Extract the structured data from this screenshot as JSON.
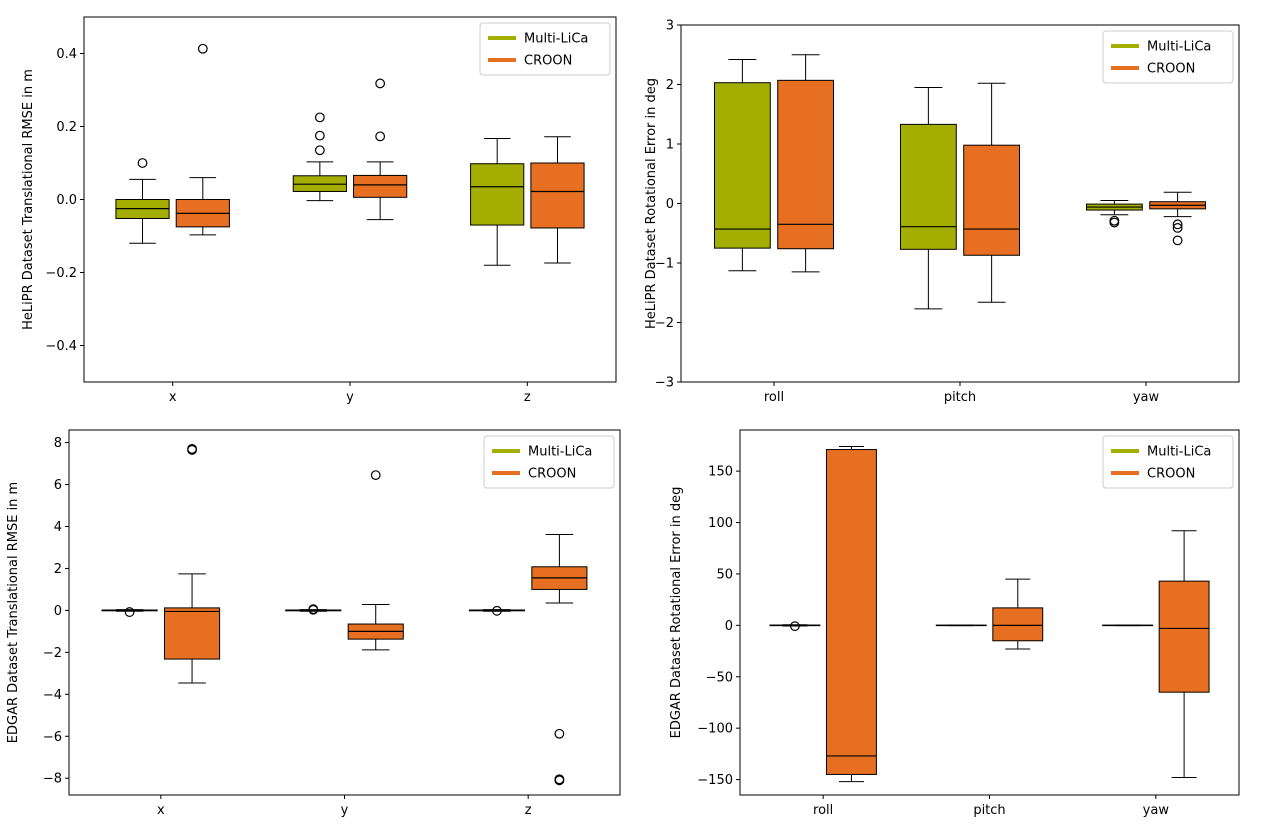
{
  "colors": {
    "multi": "#a3ae00",
    "croon": "#e66f22"
  },
  "chart_data": [
    {
      "type": "box",
      "ylabel": "HeLiPR Dataset Translational RMSE in m",
      "categories": [
        "x",
        "y",
        "z"
      ],
      "ylim": [
        -0.5,
        0.5
      ],
      "yticks": [
        -0.4,
        -0.2,
        0.0,
        0.2,
        0.4
      ],
      "ytick_labels": [
        "−0.4",
        "−0.2",
        "0.0",
        "0.2",
        "0.4"
      ],
      "legend": {
        "position": "upper right",
        "entries": [
          "Multi-LiCa",
          "CROON"
        ]
      },
      "series": [
        {
          "name": "Multi-LiCa",
          "boxes": [
            {
              "q1": -0.052,
              "median": -0.025,
              "q3": 0.0,
              "whislo": -0.12,
              "whishi": 0.055,
              "fliers": [
                0.1
              ]
            },
            {
              "q1": 0.022,
              "median": 0.042,
              "q3": 0.065,
              "whislo": -0.003,
              "whishi": 0.103,
              "fliers": [
                0.135,
                0.175,
                0.225
              ]
            },
            {
              "q1": -0.07,
              "median": 0.035,
              "q3": 0.098,
              "whislo": -0.18,
              "whishi": 0.167,
              "fliers": []
            }
          ]
        },
        {
          "name": "CROON",
          "boxes": [
            {
              "q1": -0.075,
              "median": -0.038,
              "q3": 0.0,
              "whislo": -0.097,
              "whishi": 0.06,
              "fliers": [
                0.413
              ]
            },
            {
              "q1": 0.006,
              "median": 0.04,
              "q3": 0.066,
              "whislo": -0.055,
              "whishi": 0.103,
              "fliers": [
                0.173,
                0.318
              ]
            },
            {
              "q1": -0.078,
              "median": 0.022,
              "q3": 0.1,
              "whislo": -0.174,
              "whishi": 0.172,
              "fliers": []
            }
          ]
        }
      ]
    },
    {
      "type": "box",
      "ylabel": "HeLiPR Dataset Rotational Error in deg",
      "categories": [
        "roll",
        "pitch",
        "yaw"
      ],
      "ylim": [
        -3,
        3
      ],
      "yticks": [
        -3,
        -2,
        -1,
        0,
        1,
        2,
        3
      ],
      "ytick_labels": [
        "−3",
        "−2",
        "−1",
        "0",
        "1",
        "2",
        "3"
      ],
      "legend": {
        "position": "upper right",
        "entries": [
          "Multi-LiCa",
          "CROON"
        ]
      },
      "series": [
        {
          "name": "Multi-LiCa",
          "boxes": [
            {
              "q1": -0.75,
              "median": -0.43,
              "q3": 2.03,
              "whislo": -1.13,
              "whishi": 2.42,
              "fliers": []
            },
            {
              "q1": -0.77,
              "median": -0.39,
              "q3": 1.33,
              "whislo": -1.77,
              "whishi": 1.95,
              "fliers": []
            },
            {
              "q1": -0.11,
              "median": -0.06,
              "q3": -0.01,
              "whislo": -0.19,
              "whishi": 0.05,
              "fliers": [
                -0.29,
                -0.32
              ]
            }
          ]
        },
        {
          "name": "CROON",
          "boxes": [
            {
              "q1": -0.76,
              "median": -0.35,
              "q3": 2.07,
              "whislo": -1.15,
              "whishi": 2.5,
              "fliers": []
            },
            {
              "q1": -0.87,
              "median": -0.43,
              "q3": 0.98,
              "whislo": -1.66,
              "whishi": 2.02,
              "fliers": []
            },
            {
              "q1": -0.09,
              "median": -0.03,
              "q3": 0.03,
              "whislo": -0.22,
              "whishi": 0.19,
              "fliers": [
                -0.35,
                -0.41,
                -0.62
              ]
            }
          ]
        }
      ]
    },
    {
      "type": "box",
      "ylabel": "EDGAR Dataset Translational RMSE in m",
      "categories": [
        "x",
        "y",
        "z"
      ],
      "ylim": [
        -8.8,
        8.6
      ],
      "yticks": [
        -8,
        -6,
        -4,
        -2,
        0,
        2,
        4,
        6,
        8
      ],
      "ytick_labels": [
        "−8",
        "−6",
        "−4",
        "−2",
        "0",
        "2",
        "4",
        "6",
        "8"
      ],
      "legend": {
        "position": "upper right",
        "entries": [
          "Multi-LiCa",
          "CROON"
        ]
      },
      "series": [
        {
          "name": "Multi-LiCa",
          "boxes": [
            {
              "q1": -0.02,
              "median": 0.0,
              "q3": 0.02,
              "whislo": -0.04,
              "whishi": 0.04,
              "fliers": [
                -0.08
              ]
            },
            {
              "q1": -0.02,
              "median": 0.0,
              "q3": 0.02,
              "whislo": -0.04,
              "whishi": 0.04,
              "fliers": [
                0.06,
                0.03
              ]
            },
            {
              "q1": -0.02,
              "median": 0.0,
              "q3": 0.02,
              "whislo": -0.04,
              "whishi": 0.04,
              "fliers": [
                -0.02
              ]
            }
          ]
        },
        {
          "name": "CROON",
          "boxes": [
            {
              "q1": -2.32,
              "median": -0.05,
              "q3": 0.12,
              "whislo": -3.46,
              "whishi": 1.74,
              "fliers": [
                7.65,
                7.7
              ]
            },
            {
              "q1": -1.37,
              "median": -1.0,
              "q3": -0.65,
              "whislo": -1.88,
              "whishi": 0.28,
              "fliers": [
                6.45
              ]
            },
            {
              "q1": 1.0,
              "median": 1.55,
              "q3": 2.08,
              "whislo": 0.35,
              "whishi": 3.62,
              "fliers": [
                -5.88,
                -8.05,
                -8.1
              ]
            }
          ]
        }
      ]
    },
    {
      "type": "box",
      "ylabel": "EDGAR Dataset Rotational Error in deg",
      "categories": [
        "roll",
        "pitch",
        "yaw"
      ],
      "ylim": [
        -165,
        190
      ],
      "yticks": [
        -150,
        -100,
        -50,
        0,
        50,
        100,
        150
      ],
      "ytick_labels": [
        "−150",
        "−100",
        "−50",
        "0",
        "50",
        "100",
        "150"
      ],
      "legend": {
        "position": "upper right",
        "entries": [
          "Multi-LiCa",
          "CROON"
        ]
      },
      "series": [
        {
          "name": "Multi-LiCa",
          "boxes": [
            {
              "q1": -0.3,
              "median": 0.0,
              "q3": 0.3,
              "whislo": -0.6,
              "whishi": 0.6,
              "fliers": [
                -0.8
              ]
            },
            {
              "q1": -0.2,
              "median": 0.0,
              "q3": 0.2,
              "whislo": -0.3,
              "whishi": 0.3,
              "fliers": []
            },
            {
              "q1": -0.2,
              "median": 0.0,
              "q3": 0.2,
              "whislo": -0.3,
              "whishi": 0.3,
              "fliers": []
            }
          ]
        },
        {
          "name": "CROON",
          "boxes": [
            {
              "q1": -145.0,
              "median": -127.0,
              "q3": 171.0,
              "whislo": -152.0,
              "whishi": 174.0,
              "fliers": []
            },
            {
              "q1": -15.0,
              "median": 0.0,
              "q3": 17.0,
              "whislo": -23.0,
              "whishi": 45.0,
              "fliers": []
            },
            {
              "q1": -65.0,
              "median": -3.0,
              "q3": 43.0,
              "whislo": -148.0,
              "whishi": 92.0,
              "fliers": []
            }
          ]
        }
      ]
    }
  ]
}
